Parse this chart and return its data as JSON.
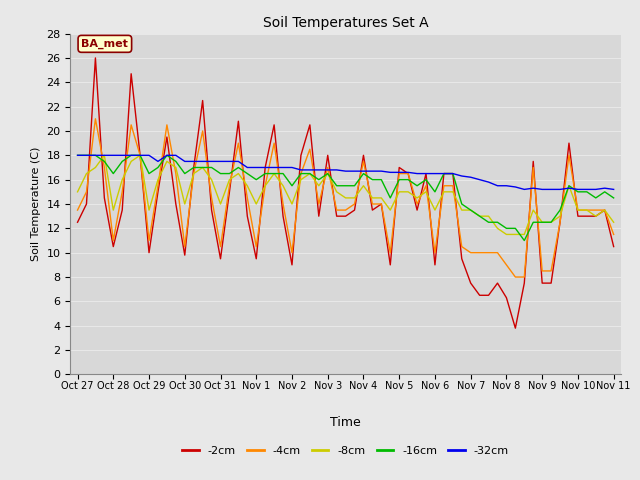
{
  "title": "Soil Temperatures Set A",
  "xlabel": "Time",
  "ylabel": "Soil Temperature (C)",
  "annotation": "BA_met",
  "ylim": [
    0,
    28
  ],
  "yticks": [
    0,
    2,
    4,
    6,
    8,
    10,
    12,
    14,
    16,
    18,
    20,
    22,
    24,
    26,
    28
  ],
  "xtick_labels": [
    "Oct 27",
    "Oct 28",
    "Oct 29",
    "Oct 30",
    "Oct 31",
    "Nov 1",
    "Nov 2",
    "Nov 3",
    "Nov 4",
    "Nov 5",
    "Nov 6",
    "Nov 7",
    "Nov 8",
    "Nov 9",
    "Nov 10",
    "Nov 11"
  ],
  "series_colors": [
    "#cc0000",
    "#ff8800",
    "#cccc00",
    "#00bb00",
    "#0000ee"
  ],
  "series_labels": [
    "-2cm",
    "-4cm",
    "-8cm",
    "-16cm",
    "-32cm"
  ],
  "fig_bg_color": "#e8e8e8",
  "plot_bg_color": "#d8d8d8",
  "grid_color": "#e8e8e8",
  "series": {
    "-2cm": [
      12.5,
      14.0,
      26.0,
      14.5,
      10.5,
      13.5,
      24.7,
      18.0,
      10.0,
      15.0,
      19.5,
      14.0,
      9.8,
      17.0,
      22.5,
      13.5,
      9.5,
      15.0,
      20.8,
      13.0,
      9.5,
      17.0,
      20.5,
      13.0,
      9.0,
      18.0,
      20.5,
      13.0,
      18.0,
      13.0,
      13.0,
      13.5,
      18.0,
      13.5,
      14.0,
      9.0,
      17.0,
      16.5,
      13.5,
      16.5,
      9.0,
      16.5,
      16.5,
      9.5,
      7.5,
      6.5,
      6.5,
      7.5,
      6.3,
      3.8,
      7.5,
      17.5,
      7.5,
      7.5,
      12.5,
      19.0,
      13.0,
      13.0,
      13.0,
      13.5,
      10.5
    ],
    "-4cm": [
      13.5,
      15.0,
      21.0,
      17.0,
      11.0,
      15.0,
      20.5,
      18.0,
      11.0,
      15.5,
      20.5,
      16.5,
      10.5,
      16.5,
      20.0,
      14.5,
      10.5,
      15.5,
      19.0,
      14.5,
      10.5,
      15.5,
      19.0,
      14.0,
      10.0,
      16.5,
      18.5,
      14.0,
      17.0,
      13.5,
      13.5,
      14.0,
      17.5,
      14.0,
      14.0,
      10.0,
      16.5,
      16.5,
      14.0,
      15.5,
      10.0,
      15.5,
      15.5,
      10.5,
      10.0,
      10.0,
      10.0,
      10.0,
      9.0,
      8.0,
      8.0,
      17.0,
      8.5,
      8.5,
      12.5,
      18.0,
      13.5,
      13.5,
      13.5,
      13.5,
      11.5
    ],
    "-8cm": [
      15.0,
      16.5,
      17.0,
      18.0,
      13.5,
      16.0,
      17.5,
      18.0,
      13.5,
      16.0,
      17.5,
      17.0,
      14.0,
      16.5,
      17.0,
      16.0,
      14.0,
      16.0,
      16.5,
      15.5,
      14.0,
      15.5,
      16.5,
      15.5,
      14.0,
      16.0,
      16.5,
      15.5,
      16.5,
      15.0,
      14.5,
      14.5,
      15.5,
      14.5,
      14.5,
      13.5,
      15.0,
      15.0,
      14.5,
      15.0,
      13.5,
      15.0,
      15.0,
      13.5,
      13.5,
      13.0,
      13.0,
      12.0,
      11.5,
      11.5,
      11.5,
      13.5,
      12.5,
      12.5,
      13.0,
      15.5,
      13.5,
      13.5,
      13.0,
      13.5,
      12.5
    ],
    "-16cm": [
      18.0,
      18.0,
      18.0,
      17.5,
      16.5,
      17.5,
      18.0,
      18.0,
      16.5,
      17.0,
      18.0,
      17.5,
      16.5,
      17.0,
      17.0,
      17.0,
      16.5,
      16.5,
      17.0,
      16.5,
      16.0,
      16.5,
      16.5,
      16.5,
      15.5,
      16.5,
      16.5,
      16.0,
      16.5,
      15.5,
      15.5,
      15.5,
      16.5,
      16.0,
      16.0,
      14.5,
      16.0,
      16.0,
      15.5,
      16.0,
      15.0,
      16.5,
      16.5,
      14.0,
      13.5,
      13.0,
      12.5,
      12.5,
      12.0,
      12.0,
      11.0,
      12.5,
      12.5,
      12.5,
      13.5,
      15.5,
      15.0,
      15.0,
      14.5,
      15.0,
      14.5
    ],
    "-32cm": [
      18.0,
      18.0,
      18.0,
      18.0,
      18.0,
      18.0,
      18.0,
      18.0,
      18.0,
      17.5,
      18.0,
      18.0,
      17.5,
      17.5,
      17.5,
      17.5,
      17.5,
      17.5,
      17.5,
      17.0,
      17.0,
      17.0,
      17.0,
      17.0,
      17.0,
      16.8,
      16.8,
      16.8,
      16.8,
      16.8,
      16.7,
      16.7,
      16.7,
      16.7,
      16.7,
      16.6,
      16.6,
      16.6,
      16.5,
      16.5,
      16.5,
      16.5,
      16.5,
      16.3,
      16.2,
      16.0,
      15.8,
      15.5,
      15.5,
      15.4,
      15.2,
      15.3,
      15.2,
      15.2,
      15.2,
      15.3,
      15.2,
      15.2,
      15.2,
      15.3,
      15.2
    ]
  }
}
